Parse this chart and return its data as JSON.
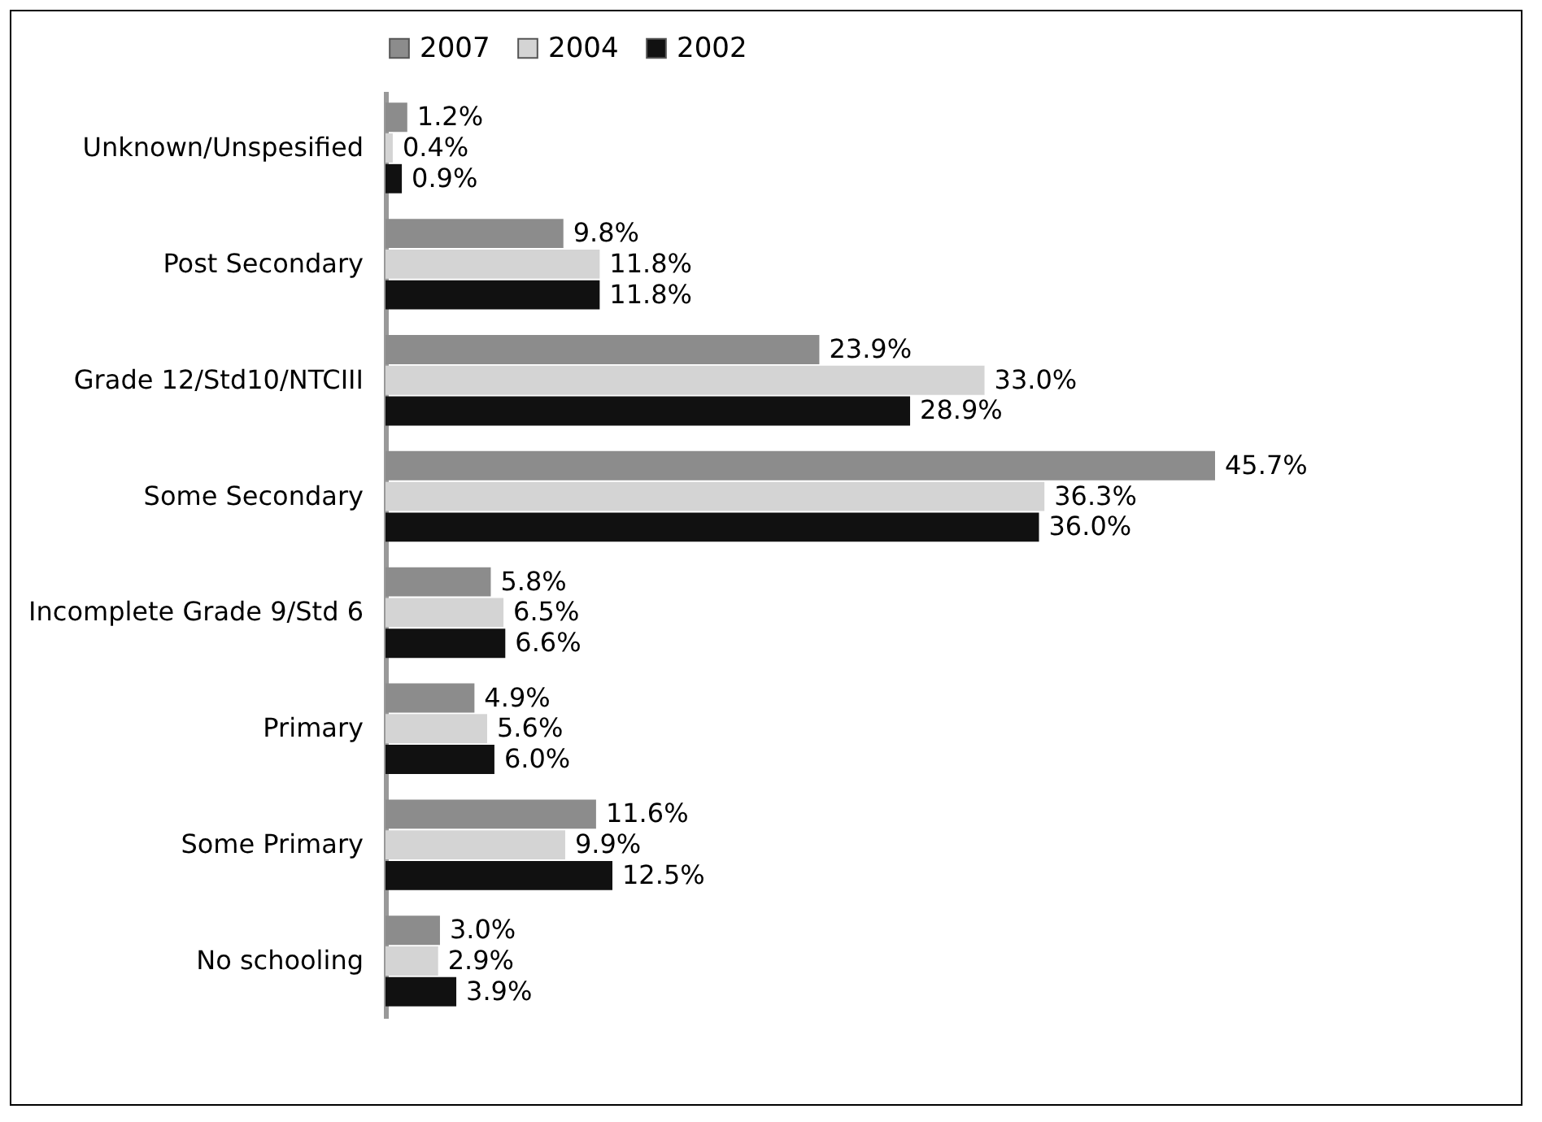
{
  "chart_data": {
    "type": "bar",
    "orientation": "horizontal",
    "legend": "top",
    "grid": false,
    "categories": [
      "Unknown/Unspesified",
      "Post Secondary",
      "Grade 12/Std10/NTCIII",
      "Some Secondary",
      "Incomplete Grade 9/Std 6",
      "Primary",
      "Some Primary",
      "No schooling"
    ],
    "series": [
      {
        "name": "2007",
        "color": "#8c8c8c",
        "values": [
          1.2,
          9.8,
          23.9,
          45.7,
          5.8,
          4.9,
          11.6,
          3.0
        ],
        "value_labels": [
          "1.2%",
          "9.8%",
          "23.9%",
          "45.7%",
          "5.8%",
          "4.9%",
          "11.6%",
          "3.0%"
        ]
      },
      {
        "name": "2004",
        "color": "#d4d4d4",
        "values": [
          0.4,
          11.8,
          33.0,
          36.3,
          6.5,
          5.6,
          9.9,
          2.9
        ],
        "value_labels": [
          "0.4%",
          "11.8%",
          "33.0%",
          "36.3%",
          "6.5%",
          "5.6%",
          "9.9%",
          "2.9%"
        ]
      },
      {
        "name": "2002",
        "color": "#111111",
        "values": [
          0.9,
          11.8,
          28.9,
          36.0,
          6.6,
          6.0,
          12.5,
          3.9
        ],
        "value_labels": [
          "0.9%",
          "11.8%",
          "28.9%",
          "36.0%",
          "6.6%",
          "6.0%",
          "12.5%",
          "3.9%"
        ]
      }
    ]
  }
}
